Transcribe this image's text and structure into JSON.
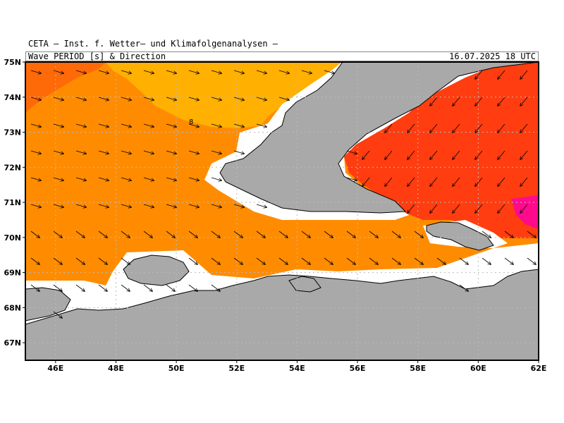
{
  "header": {
    "title": "CETA — Inst. f. Wetter— und Klimafolgenanalysen —",
    "subtitle": "Wave PERIOD [s] & Direction",
    "datetime": "16.07.2025 18 UTC"
  },
  "map": {
    "lon_range": [
      45,
      62
    ],
    "lat_range": [
      66.5,
      75
    ],
    "lat_ticks": [
      "67N",
      "68N",
      "69N",
      "70N",
      "71N",
      "72N",
      "73N",
      "74N",
      "75N"
    ],
    "lon_ticks": [
      "46E",
      "48E",
      "50E",
      "52E",
      "54E",
      "56E",
      "58E",
      "60E",
      "62E"
    ],
    "grid": true,
    "contour_label": "8",
    "colors": {
      "land": "#a9a9a9",
      "period_7": "#ffb000",
      "period_8": "#ff8c00",
      "period_9": "#ff5a10",
      "period_10": "#ff3d10",
      "period_short": "#ff0a8c",
      "period_shortest": "#ff00ff",
      "coast_gap": "#ffffff"
    },
    "arrow_direction": "south-east"
  }
}
